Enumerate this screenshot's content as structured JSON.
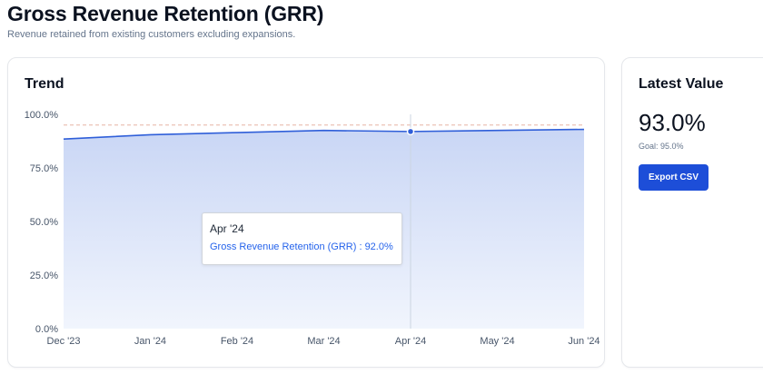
{
  "header": {
    "title": "Gross Revenue Retention (GRR)",
    "subtitle": "Revenue retained from existing customers excluding expansions."
  },
  "trend_card": {
    "title": "Trend"
  },
  "tooltip": {
    "label": "Apr '24",
    "series_text": "Gross Revenue Retention (GRR) : 92.0%"
  },
  "latest_card": {
    "title": "Latest Value",
    "value": "93.0%",
    "goal_text": "Goal: 95.0%",
    "export_label": "Export CSV"
  },
  "colors": {
    "line": "#2f5fd9",
    "area_top": "#c9d6f5",
    "area_bottom": "#f1f5fd",
    "goal_line": "#e7b3a3",
    "grid": "#e5e7eb",
    "button": "#1d4ed8"
  },
  "chart_data": {
    "type": "area",
    "x": [
      "Dec '23",
      "Jan '24",
      "Feb '24",
      "Mar '24",
      "Apr '24",
      "May '24",
      "Jun '24"
    ],
    "series": [
      {
        "name": "Gross Revenue Retention (GRR)",
        "values": [
          88.5,
          90.5,
          91.5,
          92.5,
          92.0,
          92.5,
          93.0
        ]
      }
    ],
    "goal": 95.0,
    "y_ticks": [
      "0.0%",
      "25.0%",
      "50.0%",
      "75.0%",
      "100.0%"
    ],
    "ylim": [
      0,
      100
    ],
    "active_index": 4,
    "grid": false,
    "legend": "none"
  }
}
